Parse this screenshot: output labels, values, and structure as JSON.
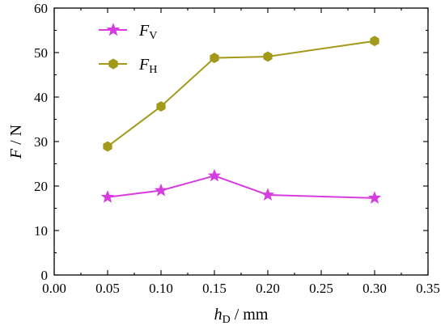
{
  "chart_data": {
    "type": "line",
    "xlabel": {
      "main": "h",
      "sub": "D",
      "unit": " / mm"
    },
    "ylabel": {
      "main": "F",
      "unit": " / N"
    },
    "xlim": [
      0,
      0.35
    ],
    "ylim": [
      0,
      60
    ],
    "xticks": [
      "0.00",
      "0.05",
      "0.10",
      "0.15",
      "0.20",
      "0.25",
      "0.30",
      "0.35"
    ],
    "yticks": [
      "0",
      "10",
      "20",
      "30",
      "40",
      "50",
      "60"
    ],
    "x": [
      0.05,
      0.1,
      0.15,
      0.2,
      0.3
    ],
    "grid": false,
    "legend_position": "top-left",
    "series": [
      {
        "name": "F",
        "name_sub": "V",
        "marker": "star",
        "color": "#d63ce0",
        "values": [
          17.5,
          19.0,
          22.3,
          18.0,
          17.3
        ]
      },
      {
        "name": "F",
        "name_sub": "H",
        "marker": "hexagon",
        "color": "#a49a1a",
        "values": [
          28.9,
          37.9,
          48.8,
          49.1,
          52.6
        ]
      }
    ]
  }
}
